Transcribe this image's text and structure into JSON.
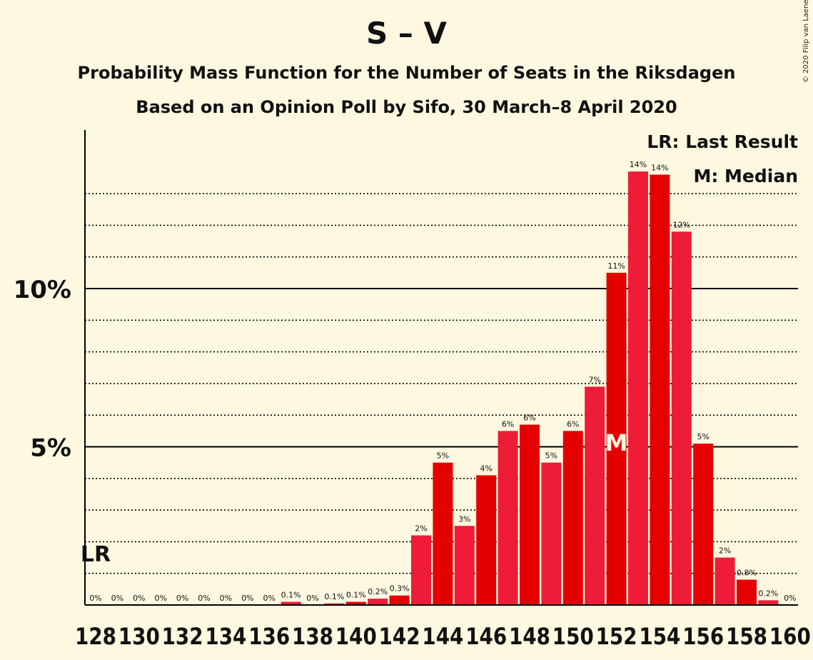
{
  "chart_data": {
    "type": "bar",
    "title": "S – V",
    "subtitle": "Probability Mass Function for the Number of Seats in the Riksdagen",
    "subtitle2": "Based on an Opinion Poll by Sifo, 30 March–8 April 2020",
    "copyright": "© 2020 Filip van Laenen",
    "legend": {
      "last_result": "LR: Last Result",
      "median": "M: Median",
      "placement": "top-right"
    },
    "xlabel": "",
    "ylabel": "",
    "ylim": [
      0,
      15
    ],
    "yticks": [
      {
        "value": 5,
        "label": "5%"
      },
      {
        "value": 10,
        "label": "10%"
      }
    ],
    "grid": "dotted every 1%, solid at 5% and 10%",
    "colors": {
      "bar_a": "#e50000",
      "bar_b": "#ee1c36",
      "background": "#fff8e1"
    },
    "last_result_seat": 128,
    "last_result_marker": "LR",
    "median_seat": 152,
    "median_marker": "M",
    "x": [
      128,
      129,
      130,
      131,
      132,
      133,
      134,
      135,
      136,
      137,
      138,
      139,
      140,
      141,
      142,
      143,
      144,
      145,
      146,
      147,
      148,
      149,
      150,
      151,
      152,
      153,
      154,
      155,
      156,
      157,
      158,
      159,
      160
    ],
    "values": [
      0,
      0,
      0,
      0,
      0,
      0,
      0,
      0,
      0,
      0.1,
      0,
      0.05,
      0.1,
      0.2,
      0.3,
      2.2,
      4.5,
      2.5,
      4.1,
      5.5,
      5.7,
      4.5,
      5.5,
      6.9,
      10.5,
      13.7,
      13.6,
      11.8,
      5.1,
      1.5,
      0.8,
      0.15,
      0
    ],
    "data_labels": [
      "0%",
      "0%",
      "0%",
      "0%",
      "0%",
      "0%",
      "0%",
      "0%",
      "0%",
      "0.1%",
      "0%",
      "0.1%",
      "0.1%",
      "0.2%",
      "0.3%",
      "2%",
      "5%",
      "3%",
      "4%",
      "6%",
      "6%",
      "5%",
      "6%",
      "7%",
      "11%",
      "14%",
      "14%",
      "12%",
      "5%",
      "2%",
      "0.8%",
      "0.2%",
      "0%"
    ],
    "x_tick_labels": [
      "128",
      "130",
      "132",
      "134",
      "136",
      "138",
      "140",
      "142",
      "144",
      "146",
      "148",
      "150",
      "152",
      "154",
      "156",
      "158",
      "160"
    ]
  }
}
